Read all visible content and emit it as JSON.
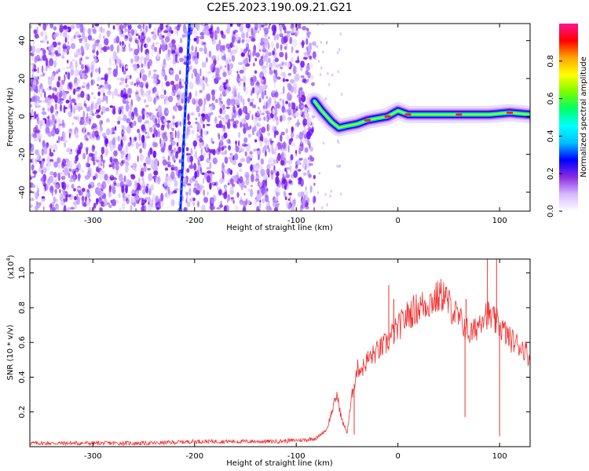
{
  "title": "C2E5.2023.190.09.21.G21",
  "chart_data": [
    {
      "type": "heatmap",
      "xlabel": "Height of straight line (km)",
      "ylabel": "Frequency (Hz)",
      "xlim": [
        -362,
        130
      ],
      "ylim": [
        -50,
        49
      ],
      "xticks": [
        -300,
        -200,
        -100,
        0,
        100
      ],
      "yticks": [
        -40,
        -20,
        0,
        20,
        40
      ],
      "noise_region": {
        "x_range": [
          -362,
          -82
        ],
        "y_range": [
          -50,
          49
        ]
      },
      "streak": [
        {
          "x": -214,
          "y": -50
        },
        {
          "x": -205,
          "y": 49
        }
      ],
      "signal_track": [
        {
          "x": -82,
          "y": 8
        },
        {
          "x": -75,
          "y": 3
        },
        {
          "x": -65,
          "y": -3
        },
        {
          "x": -58,
          "y": -6
        },
        {
          "x": -50,
          "y": -5
        },
        {
          "x": -40,
          "y": -4
        },
        {
          "x": -30,
          "y": -2
        },
        {
          "x": -20,
          "y": -1
        },
        {
          "x": -10,
          "y": 0
        },
        {
          "x": 0,
          "y": 3
        },
        {
          "x": 10,
          "y": 1
        },
        {
          "x": 30,
          "y": 1
        },
        {
          "x": 60,
          "y": 1
        },
        {
          "x": 90,
          "y": 1
        },
        {
          "x": 110,
          "y": 2
        },
        {
          "x": 130,
          "y": 1
        }
      ],
      "colorbar": {
        "label": "Normalized spectral amplitude",
        "range": [
          0,
          1
        ],
        "ticks": [
          "0.0",
          "0.2",
          "0.4",
          "0.6",
          "0.8"
        ],
        "colors": [
          "#ffffff",
          "#d6b8ff",
          "#8a2be2",
          "#0000ff",
          "#00bfff",
          "#00ffff",
          "#00ff66",
          "#7cfc00",
          "#ffff00",
          "#ffa500",
          "#ff0000",
          "#ff1493"
        ]
      }
    },
    {
      "type": "line",
      "xlabel": "Height of straight line (km)",
      "ylabel": "SNR (10 * v/v)",
      "scale_label": "(x10",
      "scale_exp": "4",
      "scale_close": ")",
      "xlim": [
        -362,
        130
      ],
      "ylim": [
        0,
        1.08
      ],
      "xticks": [
        -300,
        -200,
        -100,
        0,
        100
      ],
      "yticks": [
        "0.2",
        "0.4",
        "0.6",
        "0.8",
        "1.0"
      ],
      "series_color": "#f03030",
      "series": [
        {
          "x": [
            -362,
            -320,
            -280,
            -240,
            -200,
            -160,
            -120,
            -90,
            -80,
            -70,
            -65,
            -60,
            -55,
            -50,
            -45,
            -40,
            -35,
            -30,
            -20,
            -10,
            -5,
            0,
            5,
            10,
            20,
            30,
            40,
            45,
            50,
            55,
            60,
            65,
            70,
            75,
            80,
            85,
            90,
            95,
            100,
            105,
            110,
            115,
            120,
            125,
            130
          ],
          "y": [
            0.02,
            0.02,
            0.02,
            0.02,
            0.03,
            0.03,
            0.03,
            0.04,
            0.05,
            0.1,
            0.2,
            0.3,
            0.15,
            0.08,
            0.3,
            0.45,
            0.45,
            0.5,
            0.55,
            0.6,
            0.65,
            0.68,
            0.72,
            0.76,
            0.8,
            0.83,
            0.86,
            0.88,
            0.82,
            0.78,
            0.73,
            0.7,
            0.65,
            0.66,
            0.72,
            0.78,
            0.75,
            0.72,
            0.7,
            0.66,
            0.62,
            0.6,
            0.58,
            0.56,
            0.5
          ]
        }
      ],
      "spikes": [
        {
          "x": -9,
          "y": 0.93
        },
        {
          "x": -4,
          "y": 0.85
        },
        {
          "x": 47,
          "y": 0.92
        },
        {
          "x": 67,
          "y": 0.85
        },
        {
          "x": 88,
          "y": 1.08
        },
        {
          "x": 97,
          "y": 1.08
        },
        {
          "x": 100,
          "y": 0.06
        },
        {
          "x": 66,
          "y": 0.17
        },
        {
          "x": -43,
          "y": 0.07
        }
      ]
    }
  ]
}
